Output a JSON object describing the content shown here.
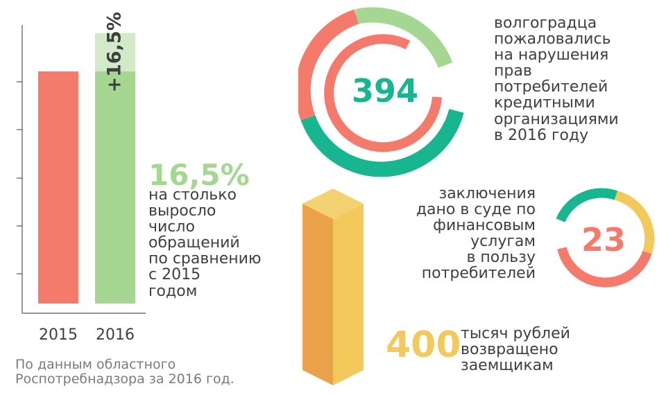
{
  "colors": {
    "red": "#f47a6b",
    "green": "#a5d792",
    "green_light": "#d3eac9",
    "teal": "#17b690",
    "yellow": "#f2c95a",
    "yellow_dark": "#e9a14a",
    "yellow_top": "#f4d171",
    "text": "#3f3f3f"
  },
  "chart_data": {
    "type": "bar",
    "categories": [
      "2015",
      "2016"
    ],
    "values": [
      100,
      116.5
    ],
    "increase_label": "+16,5%",
    "ylim": [
      0,
      120
    ]
  },
  "growth": {
    "value": "16,5%",
    "lines": [
      "на столько",
      "выросло",
      "число",
      "обращений",
      "по сравнению",
      "с 2015",
      "годом"
    ]
  },
  "source": {
    "lines": [
      "По данным областного",
      "Роспотребнадзора за 2016 год."
    ]
  },
  "complaints": {
    "value": "394",
    "lines": [
      "волгоградца",
      "пожаловались",
      "на нарушения",
      "прав",
      "потребителей",
      "кредитными",
      "организациями",
      "в 2016 году"
    ]
  },
  "court": {
    "value": "23",
    "lines": [
      "заключения",
      "дано в суде по",
      "финансовым",
      "услугам",
      "в пользу",
      "потребителей"
    ]
  },
  "refund": {
    "value": "400",
    "lines": [
      "тысяч рублей",
      "возвращено",
      "заемщикам"
    ]
  }
}
